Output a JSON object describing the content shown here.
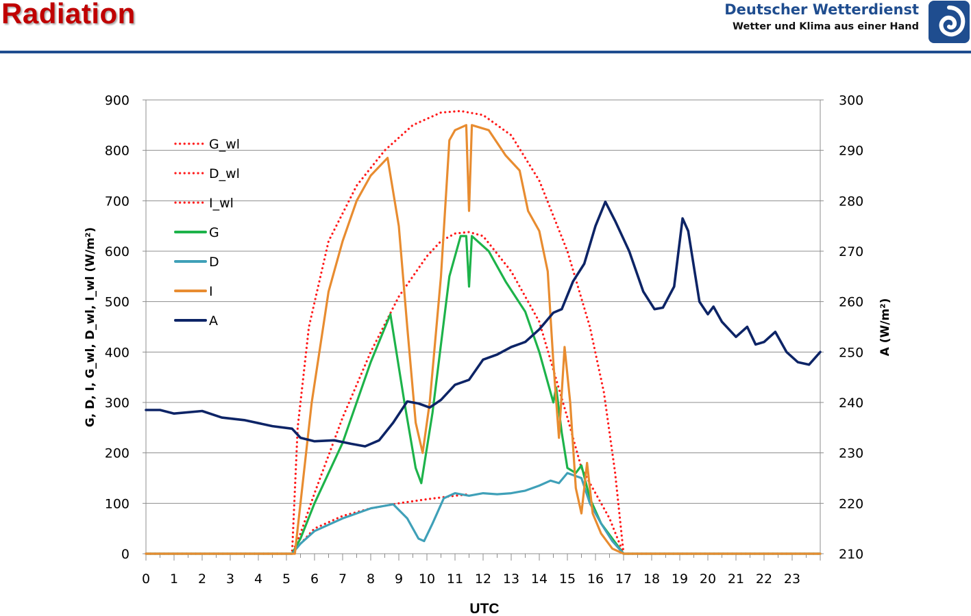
{
  "header": {
    "title": "Radiation",
    "brand_name": "Deutscher Wetterdienst",
    "brand_tagline": "Wetter und Klima aus einer Hand",
    "logo_icon": "dwd-swirl-logo-icon",
    "colors": {
      "title": "#c00000",
      "brand": "#1f4d8f",
      "rule": "#1f4d8f"
    }
  },
  "chart_data": {
    "type": "line",
    "title": "",
    "xlabel": "UTC",
    "ylabel": "G, D, I, G_wl, D_wl, I_wl (W/m²)",
    "y2label": "A (W/m²)",
    "xlim": [
      0,
      24
    ],
    "ylim": [
      0,
      900
    ],
    "y2lim": [
      210,
      300
    ],
    "xticks": [
      "0",
      "1",
      "2",
      "3",
      "4",
      "5",
      "6",
      "7",
      "8",
      "9",
      "10",
      "11",
      "12",
      "13",
      "14",
      "15",
      "16",
      "17",
      "18",
      "19",
      "20",
      "21",
      "22",
      "23"
    ],
    "yticks": [
      "0",
      "100",
      "200",
      "300",
      "400",
      "500",
      "600",
      "700",
      "800",
      "900"
    ],
    "y2ticks": [
      "210",
      "220",
      "230",
      "240",
      "250",
      "260",
      "270",
      "280",
      "290",
      "300"
    ],
    "grid": "horizontal",
    "legend_position": "top-left",
    "series": [
      {
        "name": "G_wl",
        "axis": "left",
        "color": "#ff1a1a",
        "style": "dotted",
        "points": [
          [
            0,
            0
          ],
          [
            5.2,
            0
          ],
          [
            5.4,
            250
          ],
          [
            5.8,
            450
          ],
          [
            6.5,
            620
          ],
          [
            7.5,
            730
          ],
          [
            8.5,
            800
          ],
          [
            9.5,
            850
          ],
          [
            10.5,
            875
          ],
          [
            11.2,
            878
          ],
          [
            12,
            870
          ],
          [
            13,
            830
          ],
          [
            14,
            740
          ],
          [
            15,
            600
          ],
          [
            15.8,
            450
          ],
          [
            16.3,
            320
          ],
          [
            16.7,
            160
          ],
          [
            17,
            0
          ],
          [
            24,
            0
          ]
        ]
      },
      {
        "name": "D_wl",
        "axis": "left",
        "color": "#ff1a1a",
        "style": "dotted",
        "points": [
          [
            5.2,
            0
          ],
          [
            5.5,
            20
          ],
          [
            6,
            50
          ],
          [
            7,
            75
          ],
          [
            8,
            90
          ],
          [
            9,
            100
          ],
          [
            10,
            108
          ],
          [
            11,
            115
          ],
          [
            11.5,
            118
          ]
        ]
      },
      {
        "name": "I_wl",
        "axis": "left",
        "color": "#ff1a1a",
        "style": "dotted",
        "points": [
          [
            0,
            0
          ],
          [
            5.2,
            0
          ],
          [
            5.5,
            40
          ],
          [
            6,
            120
          ],
          [
            7,
            270
          ],
          [
            8,
            400
          ],
          [
            9,
            510
          ],
          [
            10,
            590
          ],
          [
            10.5,
            620
          ],
          [
            11,
            635
          ],
          [
            11.5,
            638
          ],
          [
            12,
            630
          ],
          [
            13,
            560
          ],
          [
            14,
            460
          ],
          [
            15,
            270
          ],
          [
            15.5,
            170
          ],
          [
            16,
            120
          ],
          [
            16.5,
            70
          ],
          [
            17,
            0
          ],
          [
            24,
            0
          ]
        ]
      },
      {
        "name": "G",
        "axis": "left",
        "color": "#1db34a",
        "style": "solid",
        "points": [
          [
            0,
            0
          ],
          [
            5.2,
            0
          ],
          [
            5.5,
            30
          ],
          [
            6,
            100
          ],
          [
            7,
            220
          ],
          [
            8,
            380
          ],
          [
            8.7,
            475
          ],
          [
            9.2,
            300
          ],
          [
            9.6,
            170
          ],
          [
            9.8,
            140
          ],
          [
            10.2,
            280
          ],
          [
            10.8,
            550
          ],
          [
            11.2,
            630
          ],
          [
            11.4,
            630
          ],
          [
            11.5,
            530
          ],
          [
            11.6,
            630
          ],
          [
            12.2,
            600
          ],
          [
            12.8,
            540
          ],
          [
            13.5,
            480
          ],
          [
            14,
            400
          ],
          [
            14.4,
            320
          ],
          [
            14.5,
            300
          ],
          [
            14.6,
            330
          ],
          [
            14.8,
            240
          ],
          [
            15,
            170
          ],
          [
            15.3,
            160
          ],
          [
            15.5,
            175
          ],
          [
            15.8,
            110
          ],
          [
            16.2,
            60
          ],
          [
            16.6,
            30
          ],
          [
            17,
            0
          ],
          [
            24,
            0
          ]
        ]
      },
      {
        "name": "D",
        "axis": "left",
        "color": "#3fa0b8",
        "style": "solid",
        "points": [
          [
            0,
            0
          ],
          [
            5.2,
            0
          ],
          [
            5.5,
            20
          ],
          [
            6,
            45
          ],
          [
            7,
            70
          ],
          [
            8,
            90
          ],
          [
            8.8,
            98
          ],
          [
            9.3,
            70
          ],
          [
            9.7,
            30
          ],
          [
            9.9,
            25
          ],
          [
            10.2,
            60
          ],
          [
            10.6,
            110
          ],
          [
            11,
            120
          ],
          [
            11.5,
            115
          ],
          [
            12,
            120
          ],
          [
            12.5,
            118
          ],
          [
            13,
            120
          ],
          [
            13.5,
            125
          ],
          [
            14,
            135
          ],
          [
            14.4,
            145
          ],
          [
            14.7,
            140
          ],
          [
            15,
            160
          ],
          [
            15.5,
            150
          ],
          [
            15.8,
            100
          ],
          [
            16.2,
            60
          ],
          [
            16.6,
            25
          ],
          [
            17,
            0
          ],
          [
            24,
            0
          ]
        ]
      },
      {
        "name": "I",
        "axis": "left",
        "color": "#e88c30",
        "style": "solid",
        "points": [
          [
            0,
            0
          ],
          [
            5.3,
            0
          ],
          [
            5.5,
            100
          ],
          [
            5.9,
            300
          ],
          [
            6.5,
            520
          ],
          [
            7,
            620
          ],
          [
            7.5,
            700
          ],
          [
            8,
            750
          ],
          [
            8.6,
            785
          ],
          [
            9,
            650
          ],
          [
            9.3,
            450
          ],
          [
            9.6,
            260
          ],
          [
            9.85,
            200
          ],
          [
            10.1,
            300
          ],
          [
            10.5,
            550
          ],
          [
            10.8,
            820
          ],
          [
            11,
            840
          ],
          [
            11.4,
            850
          ],
          [
            11.5,
            680
          ],
          [
            11.6,
            850
          ],
          [
            12.2,
            840
          ],
          [
            12.8,
            790
          ],
          [
            13.3,
            760
          ],
          [
            13.6,
            680
          ],
          [
            14,
            640
          ],
          [
            14.3,
            560
          ],
          [
            14.5,
            380
          ],
          [
            14.7,
            230
          ],
          [
            14.9,
            410
          ],
          [
            15.1,
            300
          ],
          [
            15.3,
            130
          ],
          [
            15.5,
            80
          ],
          [
            15.7,
            180
          ],
          [
            15.9,
            80
          ],
          [
            16.2,
            40
          ],
          [
            16.6,
            10
          ],
          [
            17,
            0
          ],
          [
            24,
            0
          ]
        ]
      },
      {
        "name": "A",
        "axis": "right",
        "color": "#0d2466",
        "style": "solid",
        "points": [
          [
            0,
            238.5
          ],
          [
            0.5,
            238.5
          ],
          [
            1,
            237.8
          ],
          [
            2,
            238.3
          ],
          [
            2.7,
            237
          ],
          [
            3.5,
            236.5
          ],
          [
            4.5,
            235.3
          ],
          [
            5.2,
            234.8
          ],
          [
            5.5,
            233
          ],
          [
            6,
            232.3
          ],
          [
            6.7,
            232.5
          ],
          [
            7.3,
            231.8
          ],
          [
            7.8,
            231.3
          ],
          [
            8.3,
            232.5
          ],
          [
            8.8,
            236
          ],
          [
            9.3,
            240.2
          ],
          [
            9.7,
            239.8
          ],
          [
            10.1,
            239
          ],
          [
            10.5,
            240.5
          ],
          [
            11,
            243.5
          ],
          [
            11.5,
            244.5
          ],
          [
            12,
            248.5
          ],
          [
            12.5,
            249.5
          ],
          [
            13,
            251
          ],
          [
            13.5,
            252
          ],
          [
            14,
            254.5
          ],
          [
            14.5,
            257.8
          ],
          [
            14.8,
            258.5
          ],
          [
            15.2,
            264
          ],
          [
            15.6,
            267.5
          ],
          [
            16,
            275
          ],
          [
            16.35,
            279.8
          ],
          [
            16.7,
            276
          ],
          [
            17.2,
            270
          ],
          [
            17.7,
            262
          ],
          [
            18.1,
            258.5
          ],
          [
            18.4,
            258.8
          ],
          [
            18.8,
            263
          ],
          [
            19.1,
            276.5
          ],
          [
            19.3,
            274
          ],
          [
            19.7,
            260
          ],
          [
            20,
            257.5
          ],
          [
            20.2,
            259
          ],
          [
            20.5,
            256
          ],
          [
            21,
            253
          ],
          [
            21.4,
            255
          ],
          [
            21.7,
            251.5
          ],
          [
            22,
            252
          ],
          [
            22.4,
            254
          ],
          [
            22.8,
            250
          ],
          [
            23.2,
            248
          ],
          [
            23.6,
            247.5
          ],
          [
            24,
            250
          ]
        ]
      }
    ]
  }
}
